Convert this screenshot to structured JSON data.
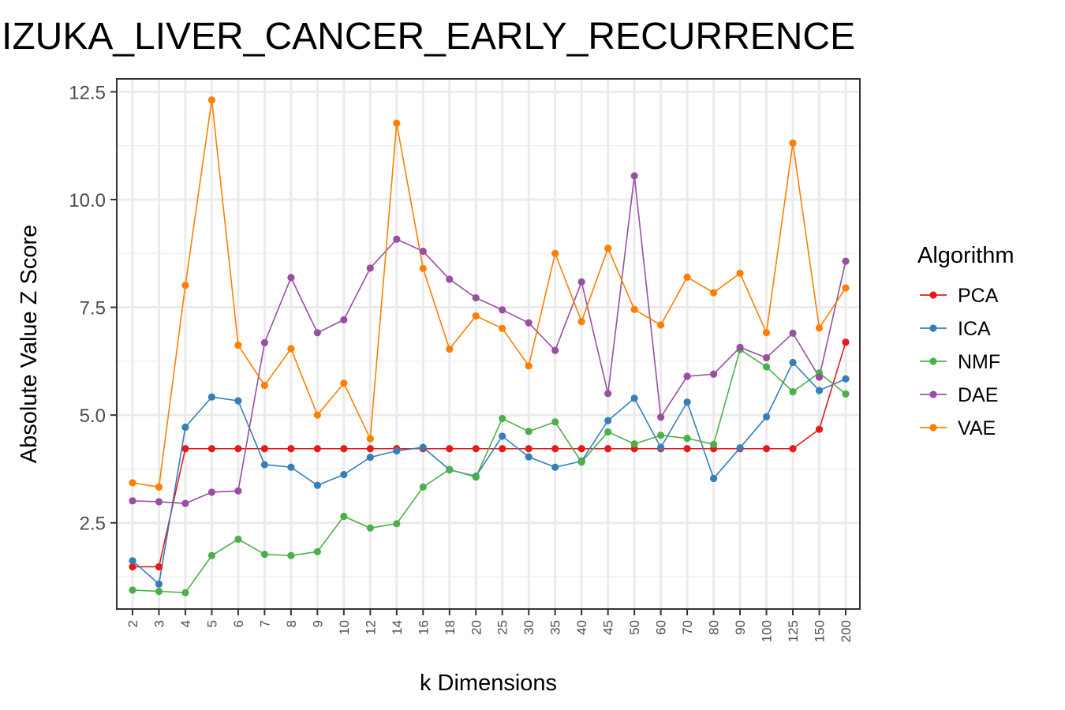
{
  "chart_data": {
    "type": "line",
    "title": "IZUKA_LIVER_CANCER_EARLY_RECURRENCE",
    "xlabel": "k Dimensions",
    "ylabel": "Absolute Value Z Score",
    "categories": [
      "2",
      "3",
      "4",
      "5",
      "6",
      "7",
      "8",
      "9",
      "10",
      "12",
      "14",
      "16",
      "18",
      "20",
      "25",
      "30",
      "35",
      "40",
      "45",
      "50",
      "60",
      "70",
      "80",
      "90",
      "100",
      "125",
      "150",
      "200"
    ],
    "ylim": [
      0.5,
      12.8
    ],
    "y_ticks": [
      2.5,
      5.0,
      7.5,
      10.0,
      12.5
    ],
    "y_tick_labels": [
      "2.5",
      "5.0",
      "7.5",
      "10.0",
      "12.5"
    ],
    "grid": true,
    "legend": {
      "title": "Algorithm",
      "position": "right"
    },
    "series": [
      {
        "name": "PCA",
        "color": "#e41a1c",
        "values": [
          1.48,
          1.48,
          4.22,
          4.22,
          4.22,
          4.22,
          4.22,
          4.22,
          4.22,
          4.22,
          4.22,
          4.22,
          4.22,
          4.22,
          4.22,
          4.22,
          4.22,
          4.22,
          4.22,
          4.22,
          4.22,
          4.22,
          4.22,
          4.22,
          4.22,
          4.22,
          4.67,
          6.69
        ]
      },
      {
        "name": "ICA",
        "color": "#377eb8",
        "values": [
          1.62,
          1.08,
          4.72,
          5.42,
          5.33,
          3.85,
          3.79,
          3.37,
          3.62,
          4.02,
          4.17,
          4.25,
          3.73,
          3.58,
          4.51,
          4.03,
          3.79,
          3.93,
          4.87,
          5.39,
          4.25,
          5.3,
          3.53,
          4.24,
          4.96,
          6.22,
          5.57,
          5.84
        ]
      },
      {
        "name": "NMF",
        "color": "#4daf4a",
        "values": [
          0.94,
          0.91,
          0.88,
          1.74,
          2.12,
          1.77,
          1.74,
          1.83,
          2.65,
          2.38,
          2.48,
          3.33,
          3.74,
          3.56,
          4.92,
          4.62,
          4.84,
          3.91,
          4.61,
          4.33,
          4.53,
          4.46,
          4.32,
          6.52,
          6.12,
          5.54,
          5.98,
          5.49
        ]
      },
      {
        "name": "DAE",
        "color": "#984ea3",
        "values": [
          3.01,
          2.99,
          2.95,
          3.21,
          3.24,
          6.68,
          8.19,
          6.91,
          7.21,
          8.41,
          9.08,
          8.8,
          8.15,
          7.72,
          7.44,
          7.14,
          6.5,
          8.09,
          5.5,
          10.55,
          4.95,
          5.9,
          5.95,
          6.57,
          6.33,
          6.9,
          5.88,
          8.57
        ]
      },
      {
        "name": "VAE",
        "color": "#ff7f00",
        "values": [
          3.43,
          3.33,
          8.01,
          12.31,
          6.62,
          5.69,
          6.54,
          5.0,
          5.74,
          4.45,
          11.77,
          8.4,
          6.53,
          7.3,
          7.01,
          6.14,
          8.75,
          7.17,
          8.87,
          7.45,
          7.09,
          8.2,
          7.84,
          8.29,
          6.91,
          11.31,
          7.02,
          7.95
        ]
      }
    ]
  }
}
